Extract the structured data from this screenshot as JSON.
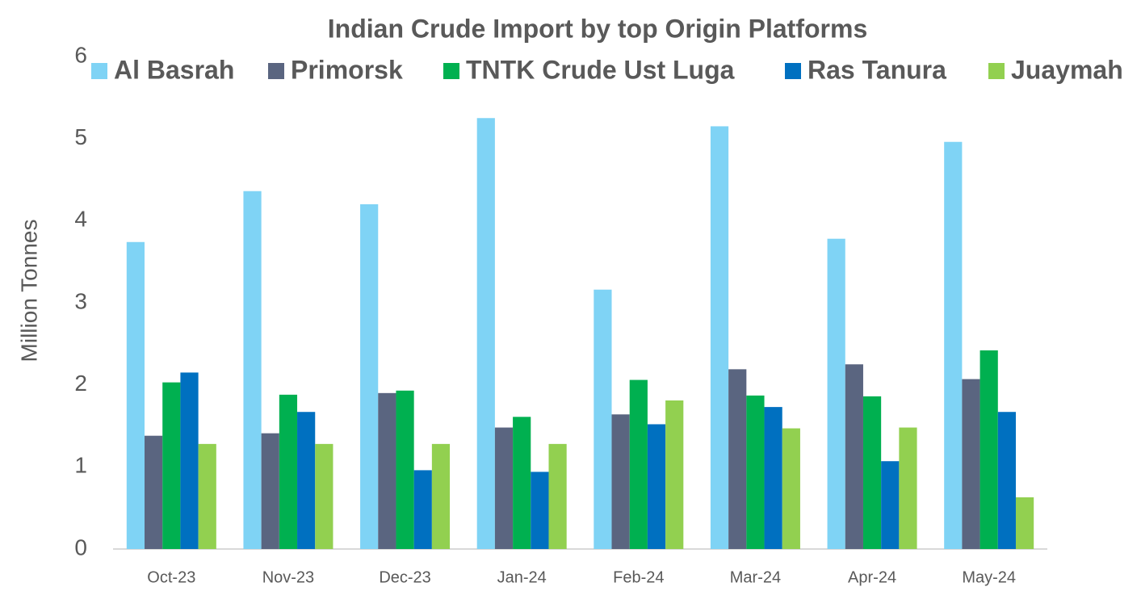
{
  "chart_data": {
    "type": "bar",
    "title": "Indian Crude Import by top Origin Platforms",
    "y_label": "Million Tonnes",
    "categories": [
      "Oct-23",
      "Nov-23",
      "Dec-23",
      "Jan-24",
      "Feb-24",
      "Mar-24",
      "Apr-24",
      "May-24"
    ],
    "series": [
      {
        "name": "Al Basrah",
        "color": "#7fd3f5",
        "values": [
          3.74,
          4.36,
          4.2,
          5.25,
          3.16,
          5.15,
          3.78,
          4.96
        ]
      },
      {
        "name": "Primorsk",
        "color": "#5a6580",
        "values": [
          1.38,
          1.41,
          1.9,
          1.48,
          1.64,
          2.19,
          2.25,
          2.07
        ]
      },
      {
        "name": "TNTK Crude Ust Luga",
        "color": "#00b050",
        "values": [
          2.03,
          1.88,
          1.93,
          1.61,
          2.06,
          1.87,
          1.86,
          2.42
        ]
      },
      {
        "name": "Ras Tanura",
        "color": "#0070c0",
        "values": [
          2.15,
          1.67,
          0.96,
          0.94,
          1.52,
          1.73,
          1.07,
          1.67
        ]
      },
      {
        "name": "Juaymah",
        "color": "#92d050",
        "values": [
          1.28,
          1.28,
          1.28,
          1.28,
          1.81,
          1.47,
          1.48,
          0.63
        ]
      }
    ],
    "ylim": [
      0,
      6
    ],
    "yticks": [
      0,
      1,
      2,
      3,
      4,
      5,
      6
    ],
    "grid": false,
    "legend": "top"
  }
}
